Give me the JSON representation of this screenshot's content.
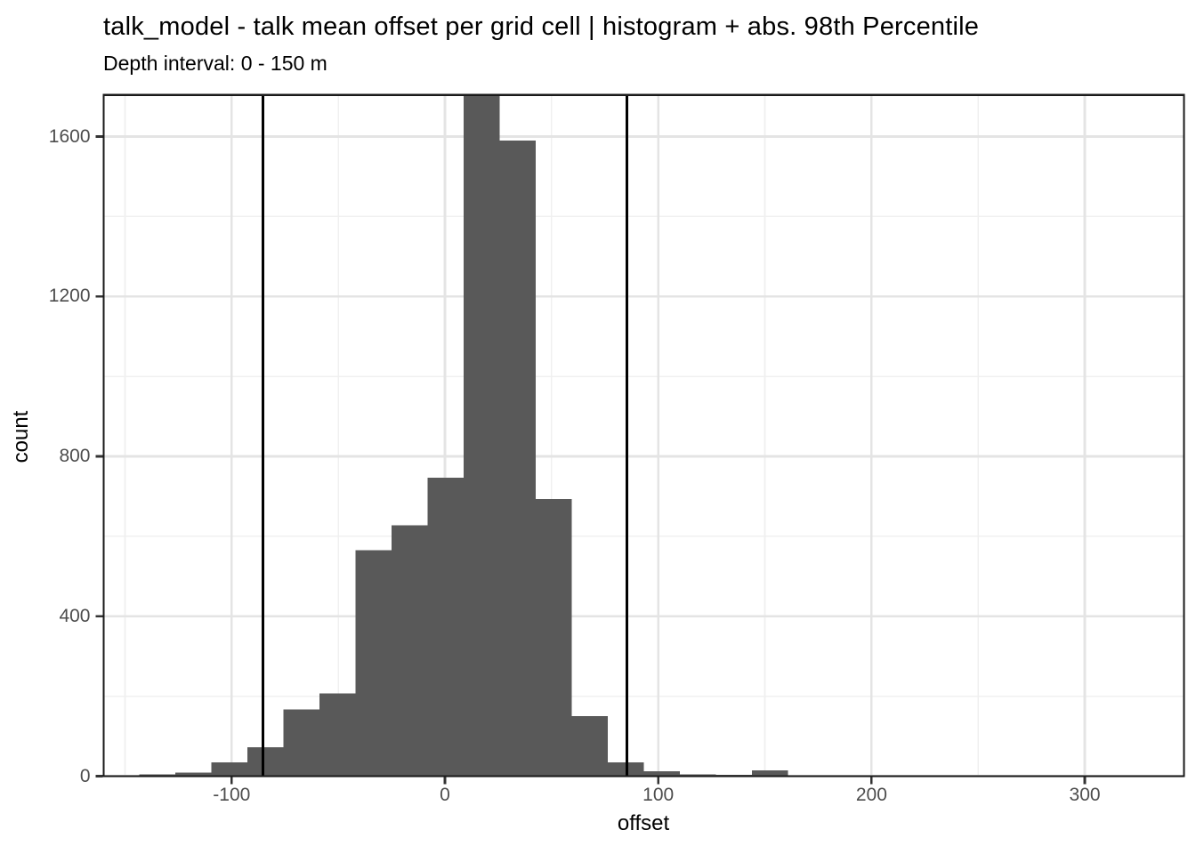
{
  "chart_data": {
    "type": "bar",
    "title": "talk_model  -  talk mean offset per grid cell | histogram + abs. 98th Percentile",
    "subtitle": "Depth interval: 0 - 150 m",
    "xlabel": "offset",
    "ylabel": "count",
    "bins": {
      "start": -143.3,
      "width": 16.9
    },
    "counts": [
      4,
      9,
      35,
      72,
      167,
      207,
      565,
      628,
      747,
      1710,
      1590,
      693,
      150,
      35,
      12,
      5,
      3,
      14,
      2
    ],
    "tallest_bar_clipped_at": 1704,
    "vlines": {
      "values": [
        -85.4,
        85.4
      ],
      "meaning": "abs. 98th Percentile",
      "color": "#000000"
    },
    "x_axis": {
      "ticks": [
        -100,
        0,
        100,
        200,
        300
      ],
      "minor": [
        -150,
        -50,
        50,
        150,
        250
      ],
      "range": [
        -160,
        346.5
      ]
    },
    "y_axis": {
      "ticks": [
        0,
        400,
        800,
        1200,
        1600
      ],
      "minor": [
        200,
        600,
        1000,
        1400
      ],
      "range": [
        0,
        1704
      ]
    },
    "grid": true,
    "legend": "none",
    "colors": {
      "bar": "#595959",
      "grid_major": "#E4E4E4",
      "grid_minor": "#F0F0F0",
      "panel_border": "#1A1A1A",
      "tick_mark": "#333333",
      "tick_label": "#4D4D4D",
      "background": "#FFFFFF"
    }
  }
}
